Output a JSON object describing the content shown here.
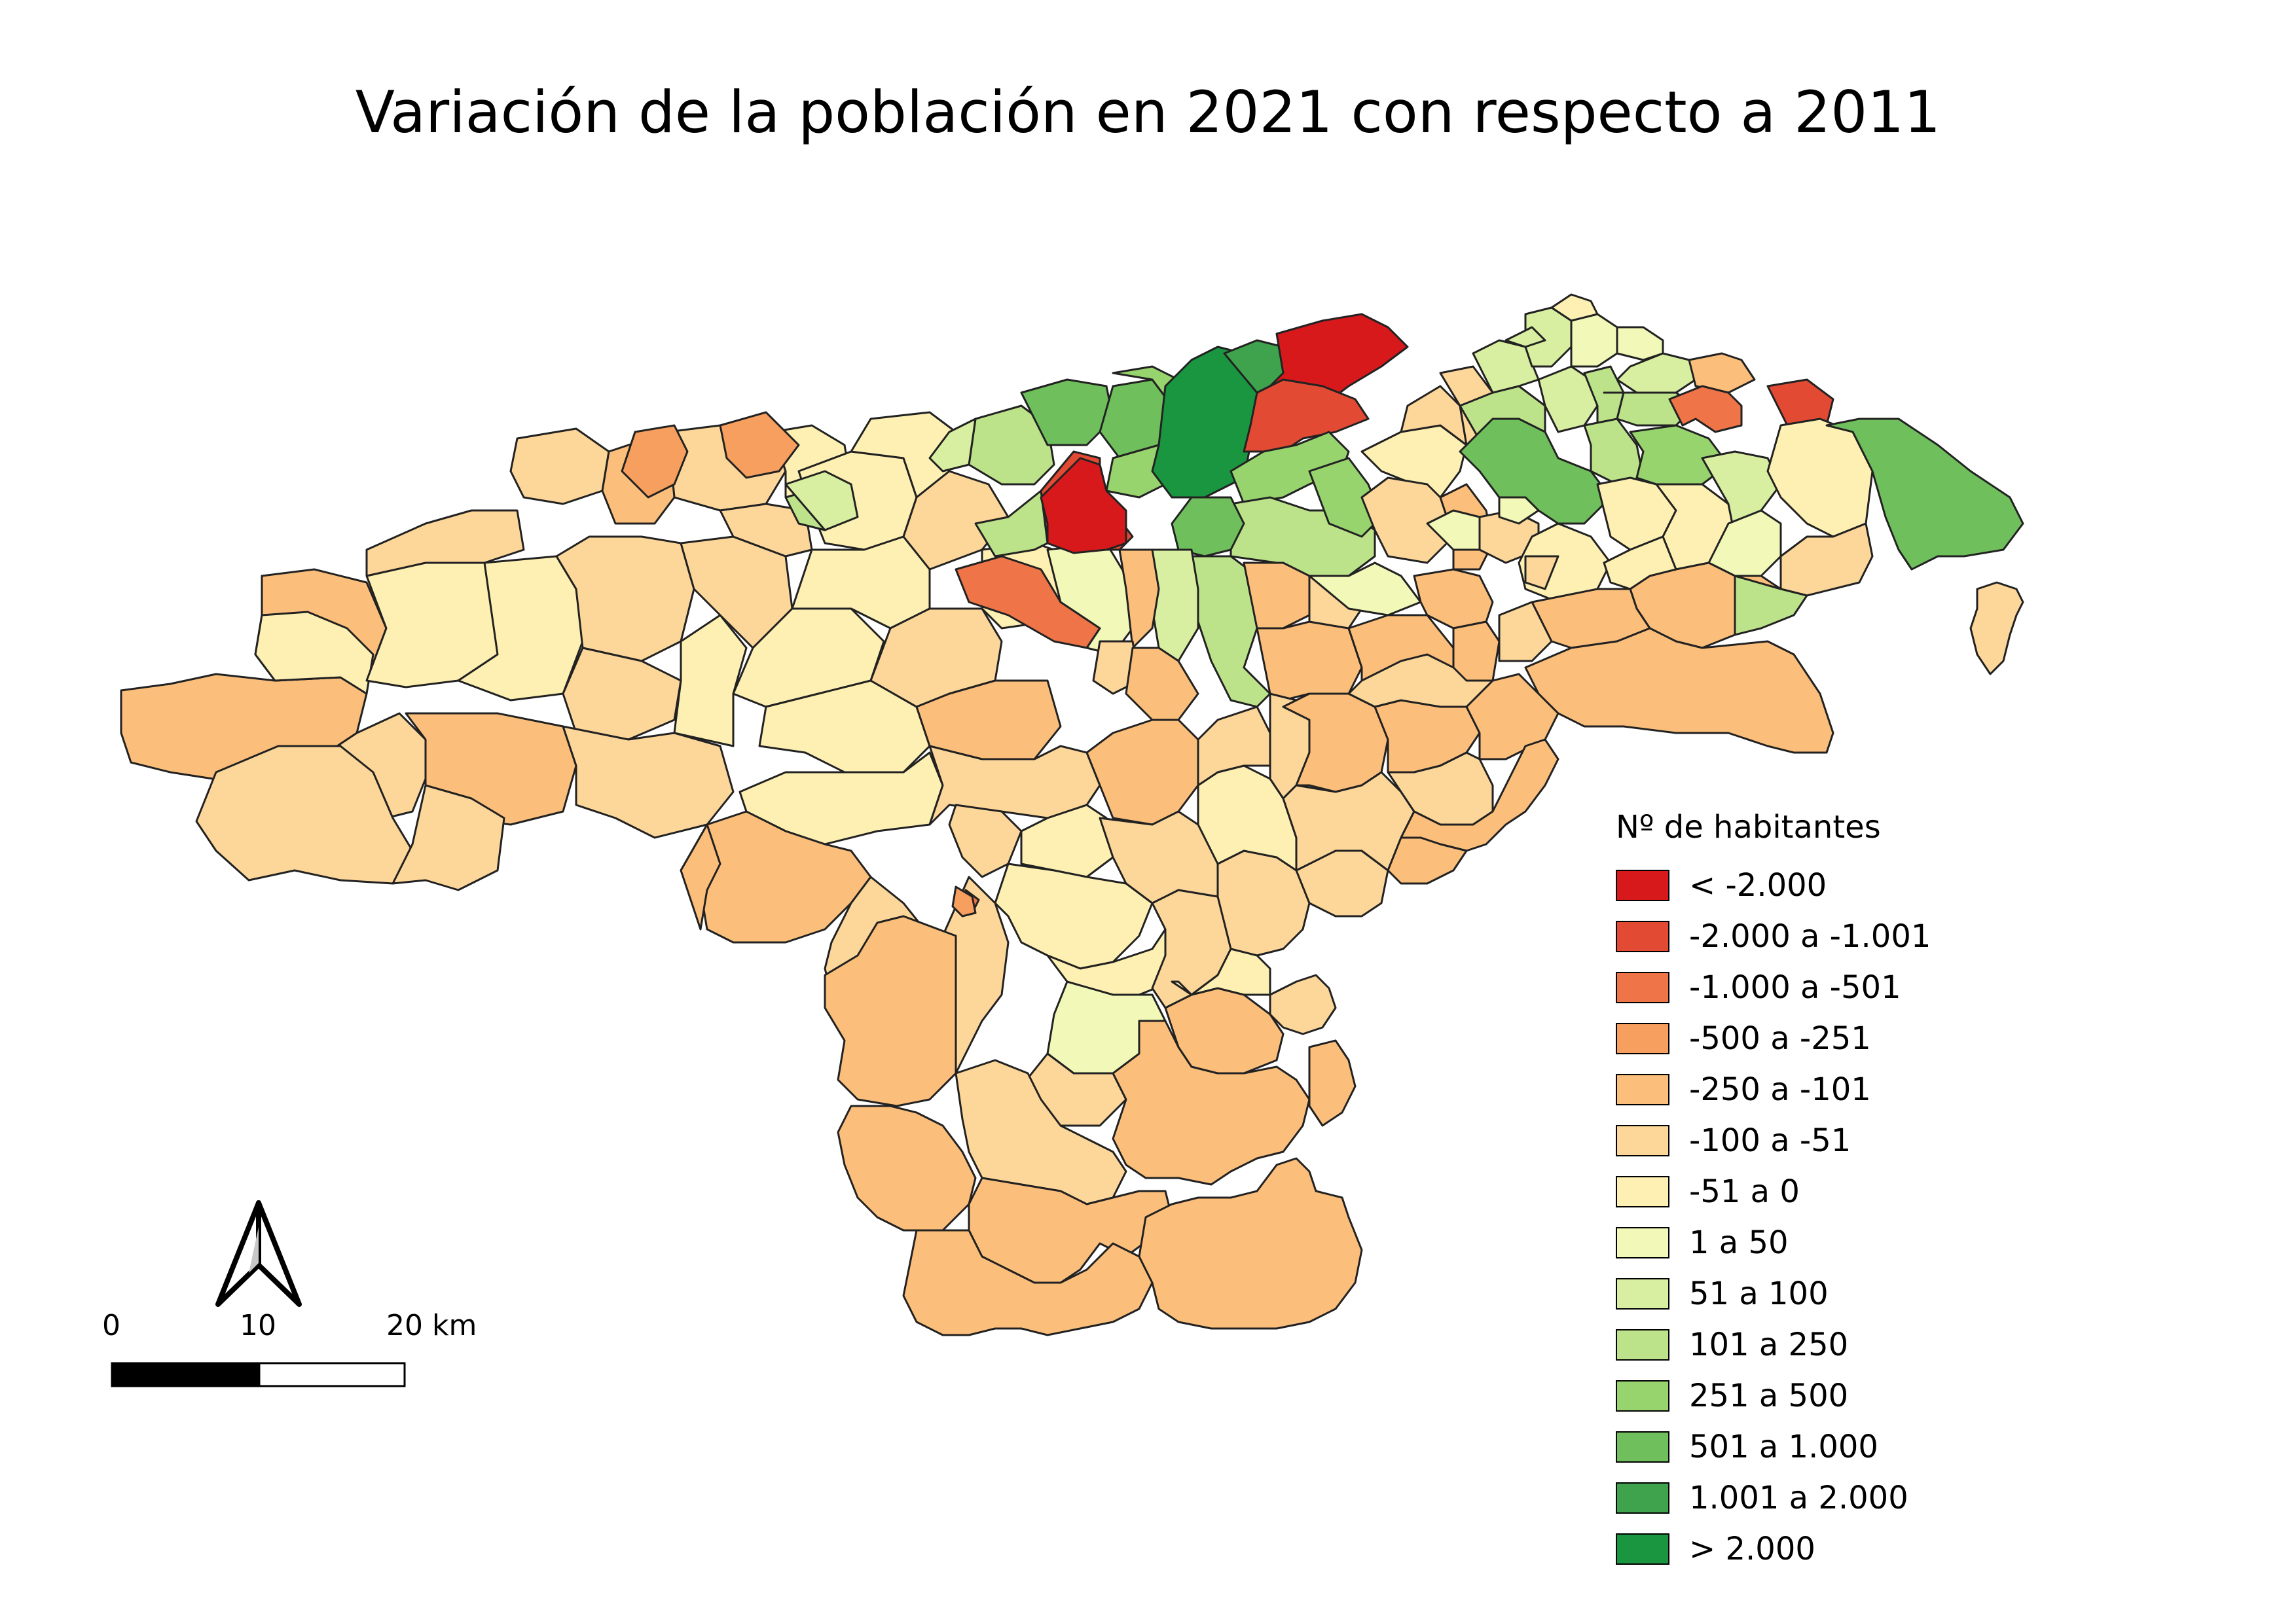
{
  "title": "Variación de la población en 2021 con respecto a 2011",
  "legend": {
    "title": "Nº de habitantes",
    "items": [
      {
        "label": "< -2.000",
        "color": "#d7191c"
      },
      {
        "label": "-2.000 a -1.001",
        "color": "#e34a33"
      },
      {
        "label": "-1.000 a -501",
        "color": "#ef7549"
      },
      {
        "label": "-500 a -251",
        "color": "#f79f5e"
      },
      {
        "label": "-250 a -101",
        "color": "#fcbf7b"
      },
      {
        "label": "-100 a -51",
        "color": "#fdd79a"
      },
      {
        "label": "-51 a 0",
        "color": "#fef0b2"
      },
      {
        "label": "1 a 50",
        "color": "#f2f9b8"
      },
      {
        "label": "51 a 100",
        "color": "#d8eea0"
      },
      {
        "label": "101 a 250",
        "color": "#bce38a"
      },
      {
        "label": "251 a 500",
        "color": "#98d46e"
      },
      {
        "label": "501 a 1.000",
        "color": "#6fbf5c"
      },
      {
        "label": "1.001 a 2.000",
        "color": "#3fa34d"
      },
      {
        "label": "> 2.000",
        "color": "#1a9641"
      }
    ]
  },
  "scale_bar": {
    "ticks": [
      "0",
      "10",
      "20 km"
    ]
  },
  "north_arrow": {
    "icon": "north-arrow-icon"
  }
}
